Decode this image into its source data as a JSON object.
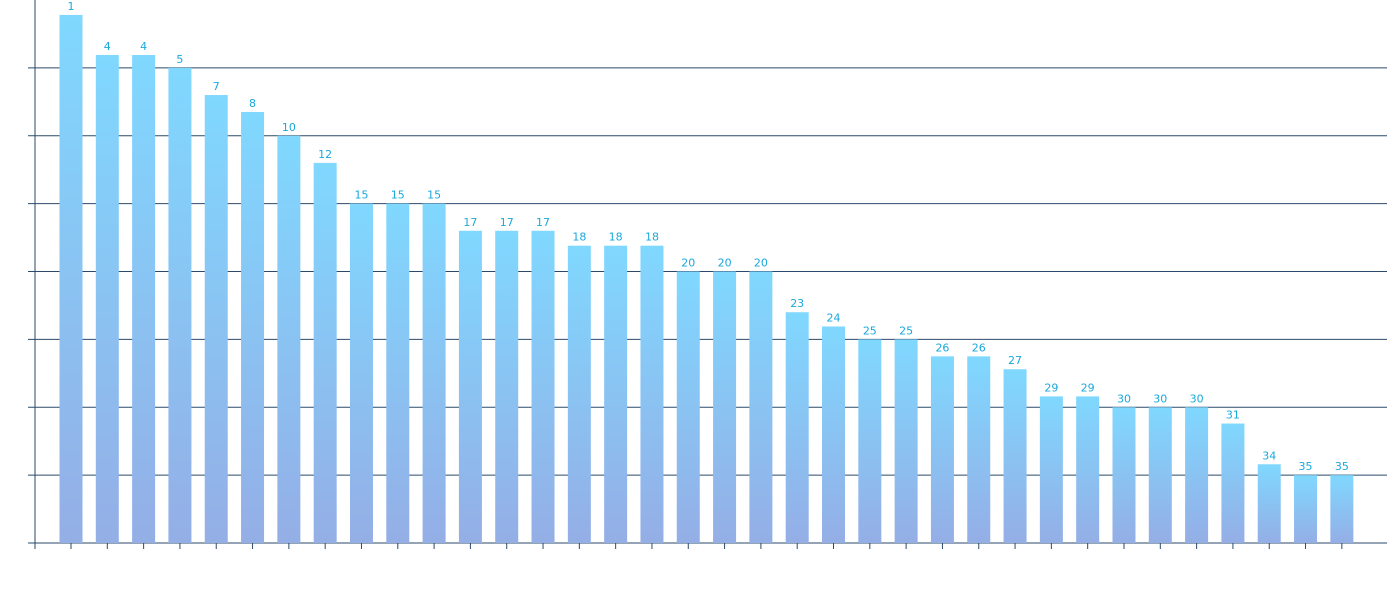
{
  "chart_data": {
    "type": "bar",
    "values": [
      7.78,
      7.19,
      7.19,
      7.0,
      6.6,
      6.35,
      6.0,
      5.6,
      5.0,
      5.0,
      5.0,
      4.6,
      4.6,
      4.6,
      4.38,
      4.38,
      4.38,
      4.0,
      4.0,
      4.0,
      3.4,
      3.19,
      3.0,
      3.0,
      2.75,
      2.75,
      2.56,
      2.16,
      2.16,
      2.0,
      2.0,
      2.0,
      1.76,
      1.16,
      1.0,
      1.0
    ],
    "rank_labels": [
      1,
      4,
      4,
      5,
      7,
      8,
      10,
      12,
      15,
      15,
      15,
      17,
      17,
      17,
      18,
      18,
      18,
      20,
      20,
      20,
      23,
      24,
      25,
      25,
      26,
      26,
      27,
      29,
      29,
      30,
      30,
      30,
      31,
      34,
      35,
      35
    ],
    "color": [
      "#80d8ff",
      "#94aee6"
    ],
    "ylim": [
      0,
      8
    ],
    "yticks": [
      0,
      1,
      2,
      3,
      4,
      5,
      6,
      7
    ],
    "grid": true
  }
}
